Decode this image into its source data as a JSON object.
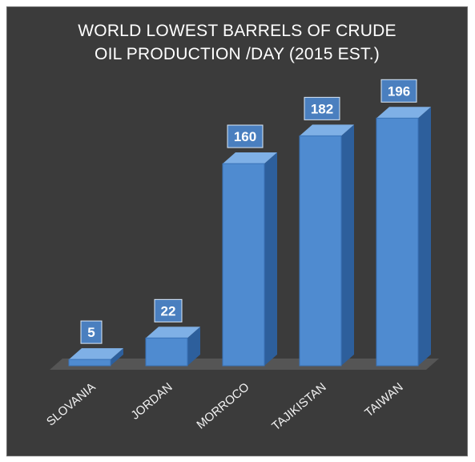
{
  "chart_data": {
    "type": "bar",
    "title_line1": "WORLD LOWEST BARRELS OF CRUDE",
    "title_line2": "OIL PRODUCTION /DAY (2015 EST.)",
    "categories": [
      "SLOVANIA",
      "JORDAN",
      "MORROCO",
      "TAJIKISTAN",
      "TAIWAN"
    ],
    "values": [
      5,
      22,
      160,
      182,
      196
    ],
    "data_labels": [
      "5",
      "22",
      "160",
      "182",
      "196"
    ],
    "xlabel": "",
    "ylabel": "",
    "ylim": [
      0,
      200
    ],
    "grid": false,
    "legend": "none",
    "colors": {
      "background": "#3b3b3b",
      "bar_front": "#4f8bd0",
      "bar_side": "#2d5f9c",
      "bar_top": "#7fb0e6",
      "floor": "#555555",
      "label_box": "#4a7fbf"
    }
  }
}
